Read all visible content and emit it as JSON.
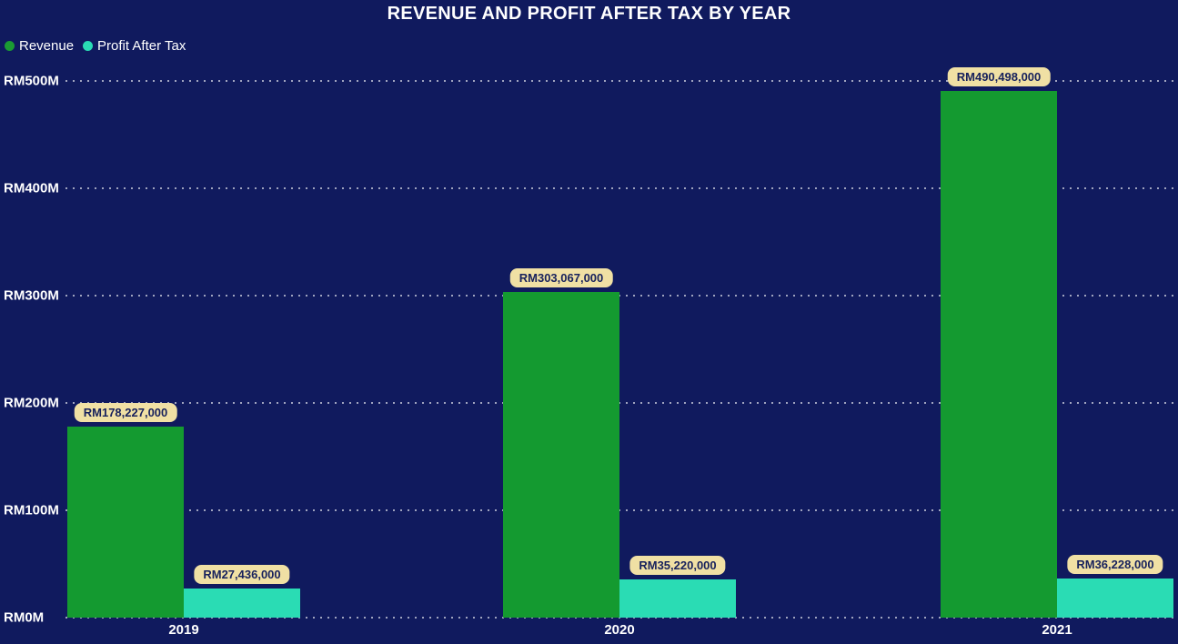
{
  "title": "REVENUE AND PROFIT AFTER TAX BY YEAR",
  "legend": [
    {
      "label": "Revenue",
      "color": "#1b9b33"
    },
    {
      "label": "Profit After Tax",
      "color": "#2adcb4"
    }
  ],
  "colors": {
    "background": "#101a5e",
    "revenue_bar": "#149a30",
    "profit_bar": "#2adcb4",
    "data_label_background": "#f0e0a4",
    "data_label_text": "#17215c",
    "axis_text": "#ffffff",
    "gridline": "rgba(255,255,255,0.6)"
  },
  "chart_data": {
    "type": "bar",
    "title": "REVENUE AND PROFIT AFTER TAX BY YEAR",
    "categories": [
      "2019",
      "2020",
      "2021"
    ],
    "series": [
      {
        "name": "Revenue",
        "color": "#149a30",
        "values": [
          178227000,
          303067000,
          490498000
        ],
        "labels": [
          "RM178,227,000",
          "RM303,067,000",
          "RM490,498,000"
        ]
      },
      {
        "name": "Profit After Tax",
        "color": "#2adcb4",
        "values": [
          27436000,
          35220000,
          36228000
        ],
        "labels": [
          "RM27,436,000",
          "RM35,220,000",
          "RM36,228,000"
        ]
      }
    ],
    "xlabel": "",
    "ylabel": "",
    "ylim": [
      0,
      500000000
    ],
    "y_ticks": [
      {
        "value": 0,
        "label": "RM0M"
      },
      {
        "value": 100000000,
        "label": "RM100M"
      },
      {
        "value": 200000000,
        "label": "RM200M"
      },
      {
        "value": 300000000,
        "label": "RM300M"
      },
      {
        "value": 400000000,
        "label": "RM400M"
      },
      {
        "value": 500000000,
        "label": "RM500M"
      }
    ],
    "grid": "horizontal-dotted",
    "legend_position": "top-left",
    "data_labels": "shown-above-bars"
  }
}
